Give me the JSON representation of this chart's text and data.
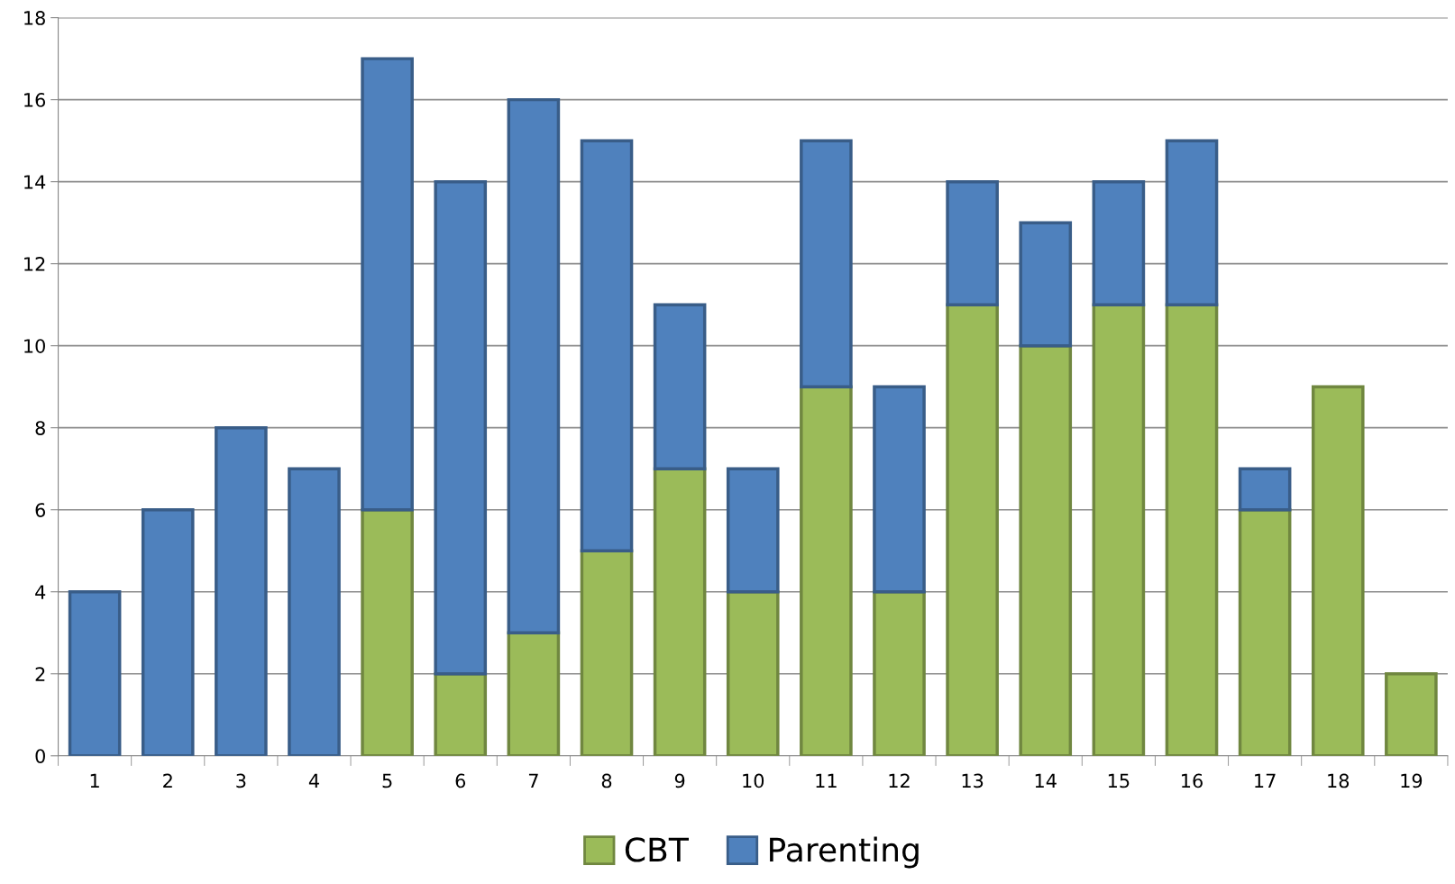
{
  "chart_data": {
    "type": "bar",
    "stacked": true,
    "categories": [
      "1",
      "2",
      "3",
      "4",
      "5",
      "6",
      "7",
      "8",
      "9",
      "10",
      "11",
      "12",
      "13",
      "14",
      "15",
      "16",
      "17",
      "18",
      "19"
    ],
    "series": [
      {
        "name": "CBT",
        "color": "#9bbb59",
        "values": [
          0,
          0,
          0,
          0,
          6,
          2,
          3,
          5,
          7,
          4,
          9,
          4,
          11,
          10,
          11,
          11,
          6,
          9,
          2
        ]
      },
      {
        "name": "Parenting",
        "color": "#4f81bd",
        "values": [
          4,
          6,
          8,
          7,
          11,
          12,
          13,
          10,
          4,
          3,
          6,
          5,
          3,
          3,
          3,
          4,
          1,
          0,
          0
        ]
      }
    ],
    "ylim": [
      0,
      18
    ],
    "yticks": [
      0,
      2,
      4,
      6,
      8,
      10,
      12,
      14,
      16,
      18
    ],
    "grid": "y",
    "legend": "bottom"
  }
}
